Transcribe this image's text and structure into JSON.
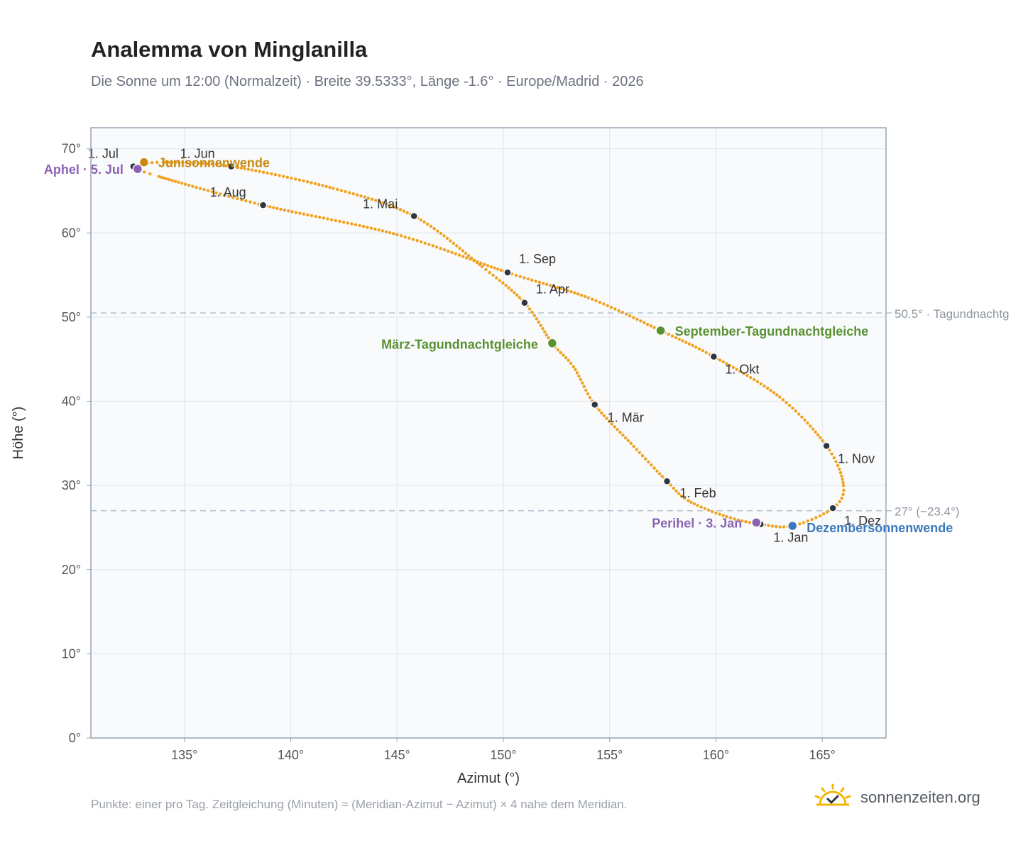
{
  "header": {
    "title": "Analemma von Minglanilla",
    "subtitle": "Die Sonne um 12:00 (Normalzeit) · Breite 39.5333°, Länge -1.6° · Europe/Madrid · 2026"
  },
  "footer": {
    "note": "Punkte: einer pro Tag. Zeitgleichung (Minuten) ≈ (Meridian-Azimut − Azimut) × 4 nahe dem Meridian.",
    "brand": "sonnenzeiten.org",
    "brand_icon": "sun-check-icon"
  },
  "colors": {
    "curve": "#f0a21f",
    "month_dot": "#2f3542",
    "solstice_june": "#c98a12",
    "solstice_december": "#3b78bb",
    "equinox": "#5a9132",
    "apsis": "#8b62b3",
    "reference_line": "#b6c2cf",
    "plot_bg": "#f8fafc",
    "grid": "#e4e9ee",
    "frame": "#9aa5b3"
  },
  "chart_data": {
    "type": "scatter",
    "xlabel": "Azimut (°)",
    "ylabel": "Höhe (°)",
    "xlim": [
      130.6,
      168
    ],
    "ylim": [
      0,
      72.5
    ],
    "x_ticks": [
      135,
      140,
      145,
      150,
      155,
      160,
      165
    ],
    "x_tick_labels": [
      "135°",
      "140°",
      "145°",
      "150°",
      "155°",
      "160°",
      "165°"
    ],
    "y_ticks": [
      0,
      10,
      20,
      30,
      40,
      50,
      60,
      70
    ],
    "y_tick_labels": [
      "0°",
      "10°",
      "20°",
      "30°",
      "40°",
      "50°",
      "60°",
      "70°"
    ],
    "grid": true,
    "analemma_path": [
      [
        162.1,
        25.4
      ],
      [
        160.5,
        26.3
      ],
      [
        158.7,
        28.2
      ],
      [
        157.7,
        30.5
      ],
      [
        156.0,
        35.0
      ],
      [
        154.3,
        39.6
      ],
      [
        153.3,
        44.1
      ],
      [
        152.3,
        46.9
      ],
      [
        151.0,
        51.7
      ],
      [
        149.0,
        56.0
      ],
      [
        145.8,
        62.0
      ],
      [
        142.0,
        65.3
      ],
      [
        137.2,
        67.9
      ],
      [
        134.0,
        68.4
      ],
      [
        132.8,
        68.0
      ],
      [
        132.7,
        67.7
      ],
      [
        133.8,
        66.7
      ],
      [
        138.7,
        63.3
      ],
      [
        145.0,
        59.8
      ],
      [
        150.2,
        55.3
      ],
      [
        154.0,
        52.3
      ],
      [
        157.4,
        48.4
      ],
      [
        159.9,
        45.3
      ],
      [
        163.0,
        40.5
      ],
      [
        165.2,
        34.7
      ],
      [
        166.0,
        30.0
      ],
      [
        165.5,
        27.3
      ],
      [
        163.6,
        25.2
      ],
      [
        162.1,
        25.4
      ]
    ],
    "month_markers": [
      {
        "label": "1. Jan",
        "azimuth": 162.1,
        "altitude": 25.4
      },
      {
        "label": "1. Feb",
        "azimuth": 157.7,
        "altitude": 30.5
      },
      {
        "label": "1. Mär",
        "azimuth": 154.3,
        "altitude": 39.6
      },
      {
        "label": "1. Apr",
        "azimuth": 151.0,
        "altitude": 51.7
      },
      {
        "label": "1. Mai",
        "azimuth": 145.8,
        "altitude": 62.0
      },
      {
        "label": "1. Jun",
        "azimuth": 137.2,
        "altitude": 67.9
      },
      {
        "label": "1. Jul",
        "azimuth": 132.6,
        "altitude": 67.9
      },
      {
        "label": "1. Aug",
        "azimuth": 138.7,
        "altitude": 63.3
      },
      {
        "label": "1. Sep",
        "azimuth": 150.2,
        "altitude": 55.3
      },
      {
        "label": "1. Okt",
        "azimuth": 159.9,
        "altitude": 45.3
      },
      {
        "label": "1. Nov",
        "azimuth": 165.2,
        "altitude": 34.7
      },
      {
        "label": "1. Dez",
        "azimuth": 165.5,
        "altitude": 27.3
      }
    ],
    "events": [
      {
        "label": "Junisonnenwende",
        "azimuth": 133.1,
        "altitude": 68.4,
        "kind": "solstice_june"
      },
      {
        "label": "Dezembersonnenwende",
        "azimuth": 163.6,
        "altitude": 25.2,
        "kind": "solstice_december"
      },
      {
        "label": "März-Tagundnachtgleiche",
        "azimuth": 152.3,
        "altitude": 46.9,
        "kind": "equinox"
      },
      {
        "label": "September-Tagundnachtgleiche",
        "azimuth": 157.4,
        "altitude": 48.4,
        "kind": "equinox"
      },
      {
        "label": "Aphel · 5. Jul",
        "azimuth": 132.8,
        "altitude": 67.6,
        "kind": "apsis"
      },
      {
        "label": "Perihel · 3. Jan",
        "azimuth": 161.9,
        "altitude": 25.6,
        "kind": "apsis"
      }
    ],
    "reference_lines": [
      {
        "altitude": 50.5,
        "label": "50.5° · Tagundnachtg"
      },
      {
        "altitude": 27.0,
        "label": "27° (−23.4°)"
      }
    ]
  }
}
